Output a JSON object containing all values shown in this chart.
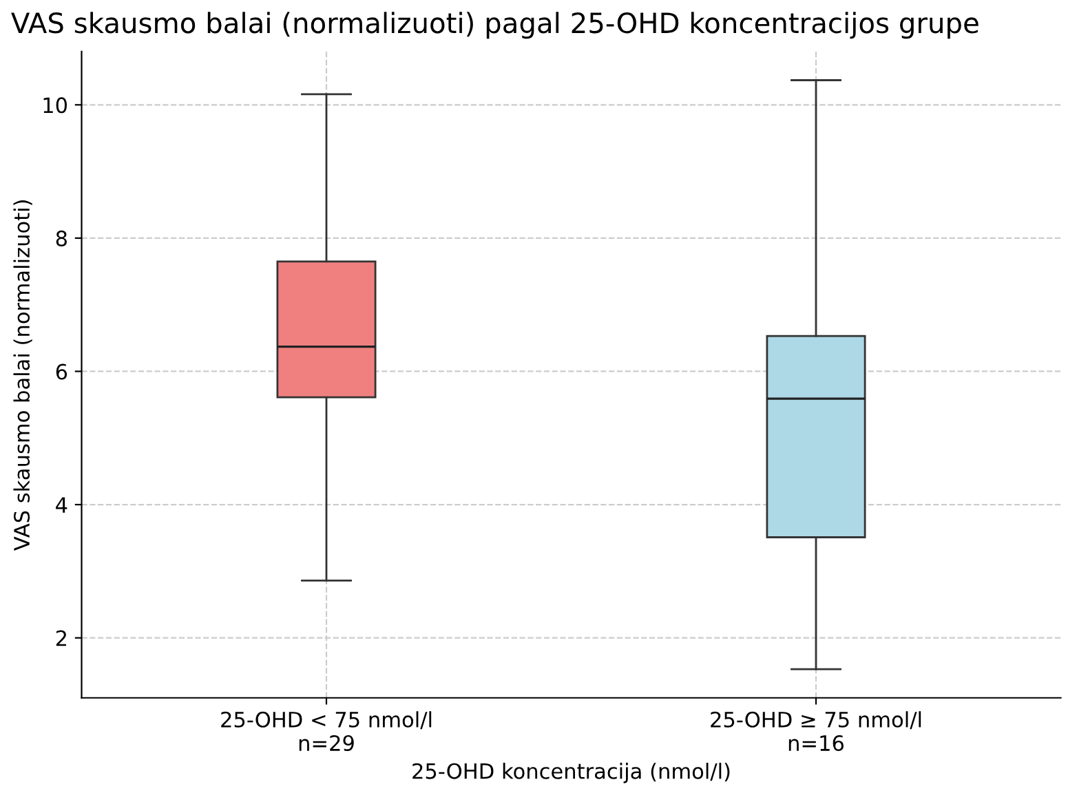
{
  "chart_data": {
    "type": "box",
    "title": "VAS skausmo balai (normalizuoti) pagal 25-OHD koncentracijos grupe",
    "xlabel": "25-OHD koncentracija (nmol/l)",
    "ylabel": "VAS skausmo balai (normalizuoti)",
    "categories": [
      "25-OHD < 75 nmol/l\nn=29",
      "25-OHD ≥ 75 nmol/l\nn=16"
    ],
    "colors": [
      "#f08080",
      "#add8e6"
    ],
    "boxes": [
      {
        "low": 2.86,
        "q1": 5.61,
        "median": 6.37,
        "q3": 7.65,
        "high": 10.16
      },
      {
        "low": 1.53,
        "q1": 3.51,
        "median": 5.59,
        "q3": 6.53,
        "high": 10.37
      }
    ],
    "ylim": [
      1.1,
      10.8
    ],
    "yticks": [
      2,
      4,
      6,
      8,
      10
    ],
    "grid": true,
    "line_style": "dashed"
  }
}
